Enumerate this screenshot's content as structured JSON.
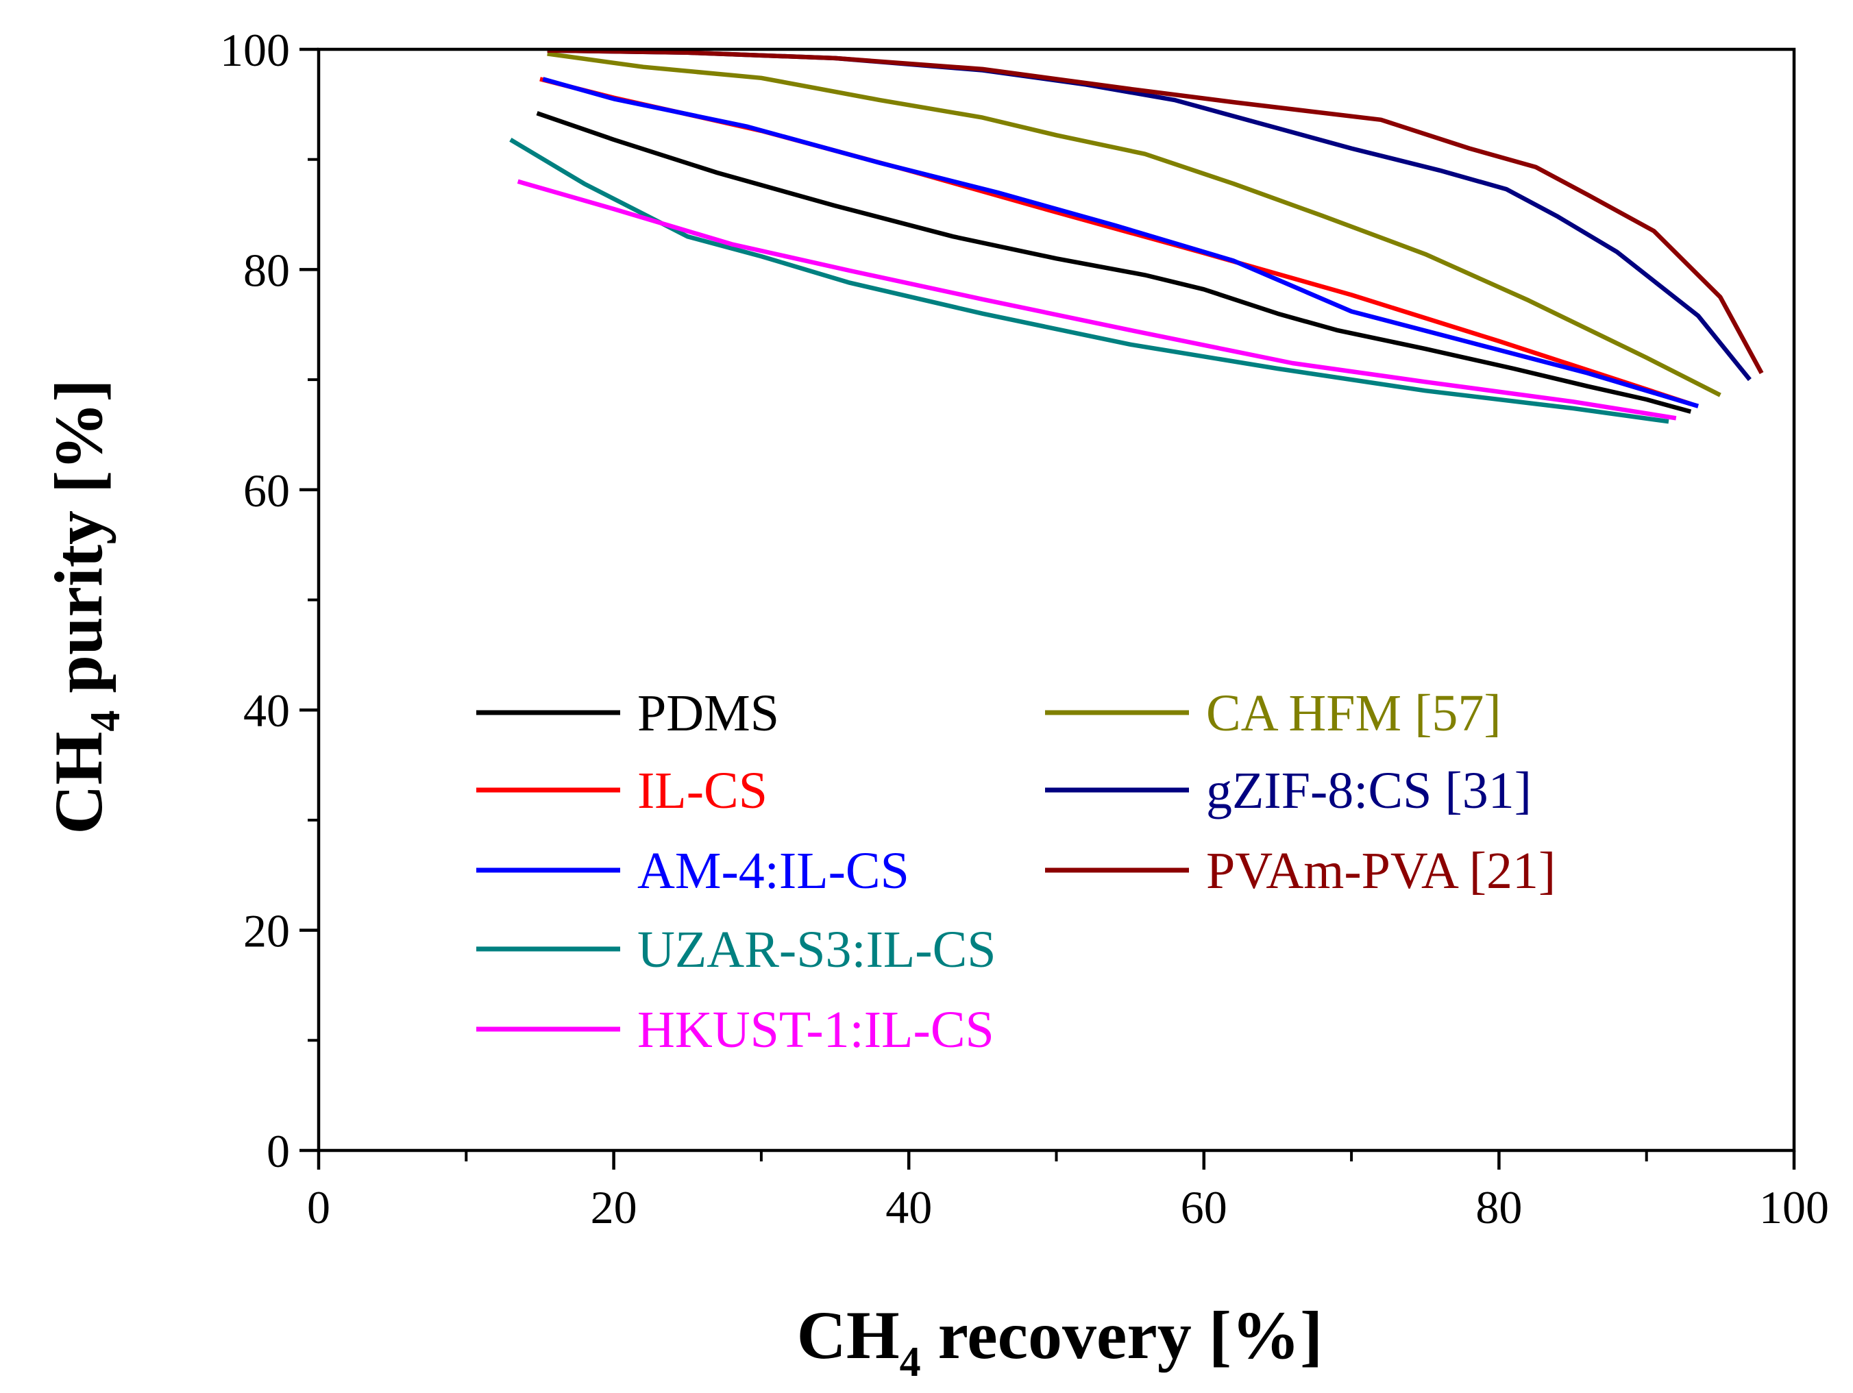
{
  "chart_data": {
    "type": "line",
    "title": "",
    "xlabel": {
      "main": "CH",
      "sub": "4",
      "rest": " recovery [%]"
    },
    "ylabel": {
      "main": "CH",
      "sub": "4",
      "rest": " purity  [%]"
    },
    "xlim": [
      0,
      100
    ],
    "ylim": [
      0,
      100
    ],
    "xticks": [
      0,
      20,
      40,
      60,
      80,
      100
    ],
    "yticks": [
      0,
      20,
      40,
      60,
      80,
      100
    ],
    "xticks_minor": [
      10,
      30,
      50,
      70,
      90
    ],
    "yticks_minor": [
      10,
      30,
      50,
      70,
      90
    ],
    "xtick_labels": [
      "0",
      "20",
      "40",
      "60",
      "80",
      "100"
    ],
    "ytick_labels": [
      "0",
      "20",
      "40",
      "60",
      "80",
      "100"
    ],
    "grid": false,
    "legend_position": "lower-left, two columns",
    "series": [
      {
        "id": "pdms",
        "name": "PDMS",
        "color": "#000000",
        "x": [
          14.8,
          20,
          27,
          35,
          43,
          50,
          56,
          60,
          65,
          69,
          75,
          81,
          86,
          90,
          93
        ],
        "y": [
          94.2,
          91.8,
          88.8,
          85.8,
          83,
          81,
          79.5,
          78.2,
          76,
          74.5,
          72.8,
          71,
          69.4,
          68.2,
          67.1
        ]
      },
      {
        "id": "il-cs",
        "name": "IL-CS",
        "color": "#ff0000",
        "x": [
          15,
          20,
          30,
          40,
          50,
          60,
          70,
          80,
          88,
          93
        ],
        "y": [
          97.3,
          95.6,
          92.6,
          89,
          85.2,
          81.5,
          77.7,
          73.5,
          70,
          67.8
        ]
      },
      {
        "id": "am4",
        "name": "AM-4:IL-CS",
        "color": "#0000ff",
        "x": [
          15.2,
          20,
          29,
          38,
          46,
          54,
          62,
          70,
          78,
          86,
          93.5
        ],
        "y": [
          97.3,
          95.5,
          93,
          89.7,
          87,
          84,
          80.8,
          76.2,
          73.4,
          70.6,
          67.6
        ]
      },
      {
        "id": "uzar",
        "name": "UZAR-S3:IL-CS",
        "color": "#008080",
        "x": [
          13,
          18,
          25,
          30,
          36,
          45,
          55,
          65,
          75,
          85,
          91.5
        ],
        "y": [
          91.8,
          87.8,
          83,
          81.2,
          78.8,
          76,
          73.2,
          71,
          69,
          67.4,
          66.2
        ]
      },
      {
        "id": "hkust",
        "name": "HKUST-1:IL-CS",
        "color": "#ff00ff",
        "x": [
          13.5,
          20,
          28,
          36,
          45,
          55,
          66,
          75,
          85,
          92
        ],
        "y": [
          88,
          85.5,
          82.3,
          79.9,
          77.3,
          74.5,
          71.5,
          69.8,
          68,
          66.5
        ]
      },
      {
        "id": "ca-hfm",
        "name": "CA HFM [57]",
        "color": "#808000",
        "x": [
          15.5,
          22,
          30,
          38,
          45,
          50,
          56,
          62,
          68,
          75,
          82,
          90,
          95
        ],
        "y": [
          99.6,
          98.4,
          97.4,
          95.4,
          93.8,
          92.2,
          90.5,
          87.8,
          84.9,
          81.4,
          77.2,
          72,
          68.6
        ]
      },
      {
        "id": "gzif8",
        "name": "gZIF-8:CS [31]",
        "color": "#000080",
        "x": [
          15.5,
          25,
          35,
          45,
          52,
          58,
          64,
          70,
          76,
          80.5,
          84,
          88,
          93.5,
          97
        ],
        "y": [
          99.9,
          99.7,
          99.2,
          98.1,
          96.8,
          95.4,
          93.2,
          91,
          89,
          87.3,
          84.8,
          81.6,
          75.8,
          70
        ]
      },
      {
        "id": "pvam",
        "name": "PVAm-PVA [21]",
        "color": "#8b0000",
        "x": [
          15.5,
          25,
          35,
          45,
          55,
          62,
          67,
          72,
          78,
          82.5,
          86,
          90.5,
          95,
          97.8
        ],
        "y": [
          99.9,
          99.7,
          99.2,
          98.2,
          96.4,
          95.2,
          94.4,
          93.6,
          91,
          89.3,
          86.8,
          83.5,
          77.5,
          70.6
        ]
      }
    ]
  }
}
